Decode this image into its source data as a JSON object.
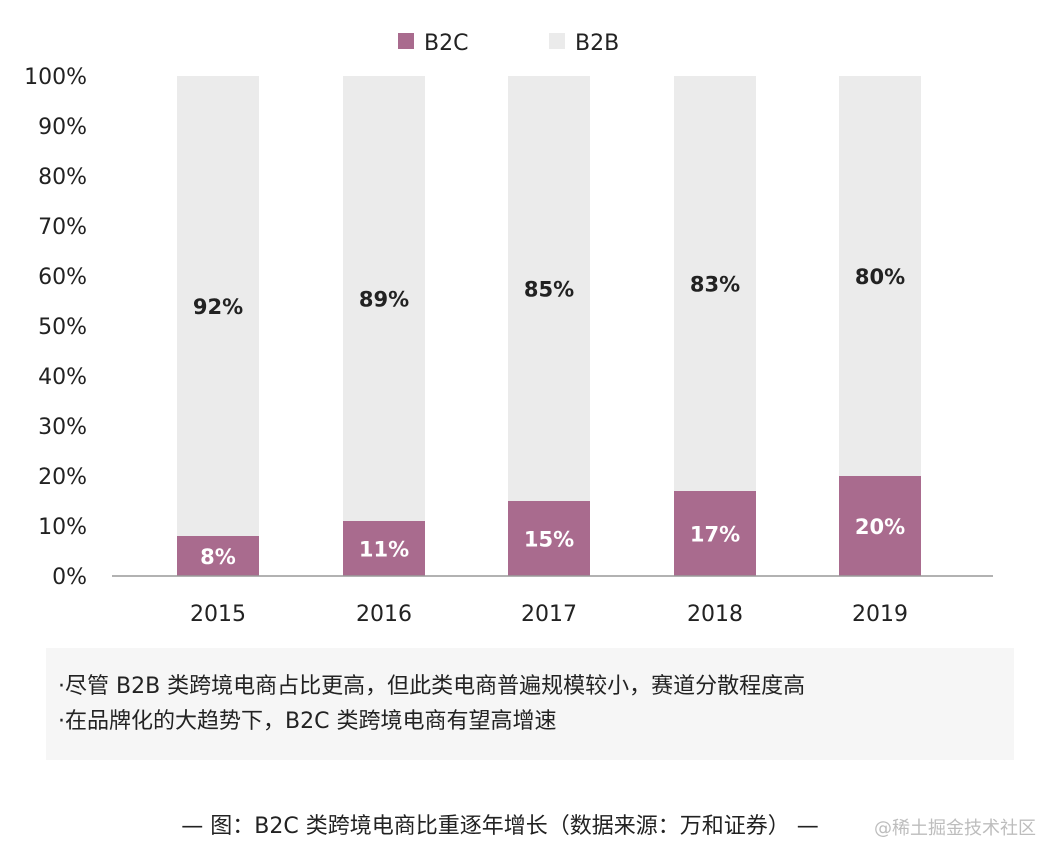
{
  "chart_data": {
    "type": "bar",
    "stacked": true,
    "categories": [
      "2015",
      "2016",
      "2017",
      "2018",
      "2019"
    ],
    "series": [
      {
        "name": "B2C",
        "values": [
          8,
          11,
          15,
          17,
          20
        ],
        "labels": [
          "8%",
          "11%",
          "15%",
          "17%",
          "20%"
        ],
        "color": "#a96b8e"
      },
      {
        "name": "B2B",
        "values": [
          92,
          89,
          85,
          83,
          80
        ],
        "labels": [
          "92%",
          "89%",
          "85%",
          "83%",
          "80%"
        ],
        "color": "#ebebeb"
      }
    ],
    "y_ticks": [
      "0%",
      "10%",
      "20%",
      "30%",
      "40%",
      "50%",
      "60%",
      "70%",
      "80%",
      "90%",
      "100%"
    ],
    "ylim": [
      0,
      100
    ],
    "legend_position": "top",
    "grid": false
  },
  "notes": [
    "·尽管 B2B 类跨境电商占比更高，但此类电商普遍规模较小，赛道分散程度高",
    "·在品牌化的大趋势下，B2C 类跨境电商有望高增速"
  ],
  "caption": "— 图：B2C 类跨境电商比重逐年增长（数据来源：万和证券） —",
  "watermark": "@稀土掘金技术社区"
}
